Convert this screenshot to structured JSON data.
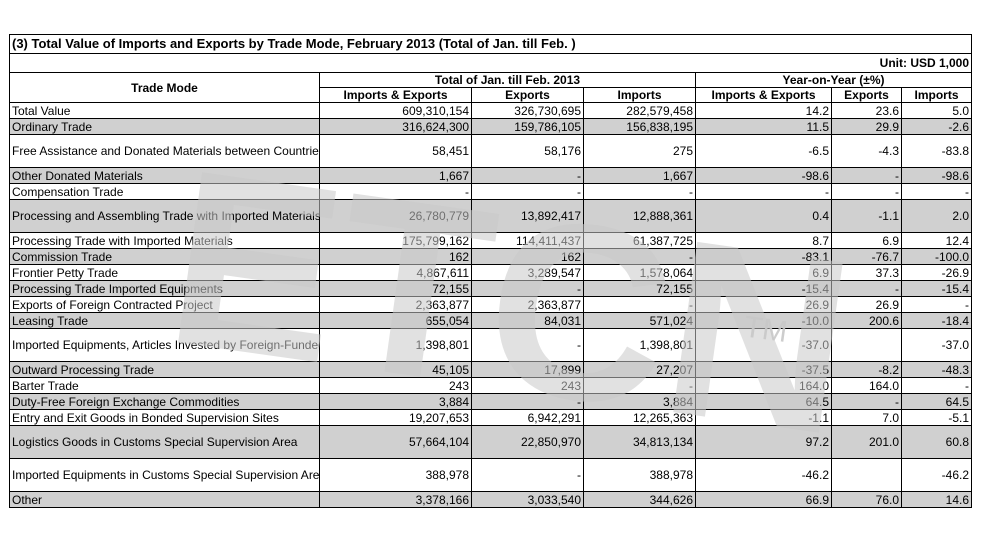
{
  "title": "(3) Total Value of Imports and Exports by Trade Mode, February 2013 (Total of Jan. till Feb. )",
  "unit": "Unit: USD 1,000",
  "header": {
    "trade_mode": "Trade Mode",
    "group_total": "Total of Jan. till Feb. 2013",
    "group_yoy": "Year-on-Year (±%)",
    "columns": [
      "Imports & Exports",
      "Exports",
      "Imports",
      "Imports & Exports",
      "Exports",
      "Imports"
    ]
  },
  "rows": [
    {
      "mode": "Total Value",
      "values": [
        "609,310,154",
        "326,730,695",
        "282,579,458",
        "14.2",
        "23.6",
        "5.0"
      ]
    },
    {
      "mode": "Ordinary Trade",
      "values": [
        "316,624,300",
        "159,786,105",
        "156,838,195",
        "11.5",
        "29.9",
        "-2.6"
      ]
    },
    {
      "mode": "Free Assistance and Donated Materials between Countries, International Organizations",
      "values": [
        "58,451",
        "58,176",
        "275",
        "-6.5",
        "-4.3",
        "-83.8"
      ]
    },
    {
      "mode": "Other Donated Materials",
      "values": [
        "1,667",
        "-",
        "1,667",
        "-98.6",
        "-",
        "-98.6"
      ]
    },
    {
      "mode": "Compensation Trade",
      "values": [
        "-",
        "-",
        "-",
        "-",
        "-",
        "-"
      ]
    },
    {
      "mode": "Processing and Assembling Trade with Imported Materials",
      "values": [
        "26,780,779",
        "13,892,417",
        "12,888,361",
        "0.4",
        "-1.1",
        "2.0"
      ]
    },
    {
      "mode": "Processing Trade with Imported Materials",
      "values": [
        "175,799,162",
        "114,411,437",
        "61,387,725",
        "8.7",
        "6.9",
        "12.4"
      ]
    },
    {
      "mode": "Commission Trade",
      "values": [
        "162",
        "162",
        "-",
        "-83.1",
        "-76.7",
        "-100.0"
      ]
    },
    {
      "mode": "Frontier Petty Trade",
      "values": [
        "4,867,611",
        "3,289,547",
        "1,578,064",
        "6.9",
        "37.3",
        "-26.9"
      ]
    },
    {
      "mode": "Processing Trade Imported Equipments",
      "values": [
        "72,155",
        "-",
        "72,155",
        "-15.4",
        "-",
        "-15.4"
      ]
    },
    {
      "mode": "Exports of Foreign Contracted Project",
      "values": [
        "2,363,877",
        "2,363,877",
        "-",
        "26.9",
        "26.9",
        "-"
      ]
    },
    {
      "mode": "Leasing Trade",
      "values": [
        "655,054",
        "84,031",
        "571,024",
        "-10.0",
        "200.6",
        "-18.4"
      ]
    },
    {
      "mode": "Imported Equipments, Articles Invested by Foreign-Funded Enterprises",
      "values": [
        "1,398,801",
        "-",
        "1,398,801",
        "-37.0",
        "",
        "-37.0"
      ]
    },
    {
      "mode": "Outward Processing Trade",
      "values": [
        "45,105",
        "17,899",
        "27,207",
        "-37.5",
        "-8.2",
        "-48.3"
      ]
    },
    {
      "mode": "Barter Trade",
      "values": [
        "243",
        "243",
        "-",
        "164.0",
        "164.0",
        "-"
      ]
    },
    {
      "mode": "Duty-Free Foreign Exchange Commodities",
      "values": [
        "3,884",
        "-",
        "3,884",
        "64.5",
        "-",
        "64.5"
      ]
    },
    {
      "mode": "Entry and Exit Goods in Bonded Supervision Sites",
      "values": [
        "19,207,653",
        "6,942,291",
        "12,265,363",
        "-1.1",
        "7.0",
        "-5.1"
      ]
    },
    {
      "mode": "Logistics Goods in Customs Special Supervision Area",
      "values": [
        "57,664,104",
        "22,850,970",
        "34,813,134",
        "97.2",
        "201.0",
        "60.8"
      ]
    },
    {
      "mode": "Imported Equipments in Customs Special Supervision Area",
      "values": [
        "388,978",
        "-",
        "388,978",
        "-46.2",
        "",
        "-46.2"
      ]
    },
    {
      "mode": "Other",
      "values": [
        "3,378,166",
        "3,033,540",
        "344,626",
        "66.9",
        "76.0",
        "14.6"
      ]
    }
  ],
  "watermark": {
    "text": "ETCN",
    "tm": "TM"
  },
  "colors": {
    "shade": "#d0d0d0",
    "plain": "#ffffff",
    "watermark": "#c8c8c8"
  }
}
